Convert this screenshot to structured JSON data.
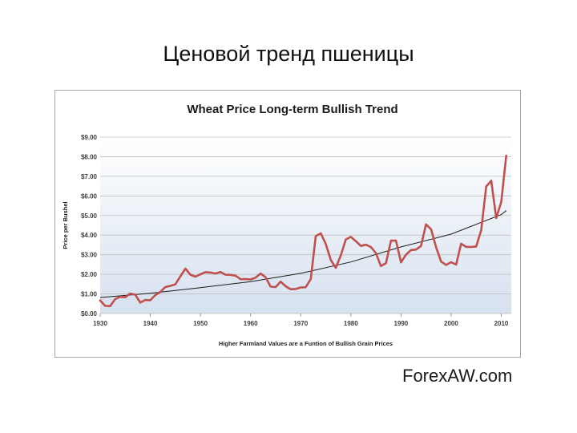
{
  "slide": {
    "title": "Ценовой тренд пшеницы",
    "watermark": "ForexAW.com"
  },
  "colors": {
    "price_line": "#c0504d",
    "trend_line": "#1a1a1a",
    "plot_bg_top": "#ffffff",
    "plot_bg_bottom": "#d6e1ef",
    "grid": "#bfbfbf"
  },
  "chart_data": {
    "type": "line",
    "title": "Wheat Price Long-term Bullish Trend",
    "xlabel": "Higher Farmland Values are a Funtion of Bullish Grain Prices",
    "ylabel": "Price per Bushel",
    "xlim": [
      1930,
      2012
    ],
    "ylim": [
      0,
      9
    ],
    "x_ticks": [
      1930,
      1940,
      1950,
      1960,
      1970,
      1980,
      1990,
      2000,
      2010
    ],
    "y_ticks": [
      "$0.00",
      "$1.00",
      "$2.00",
      "$3.00",
      "$4.00",
      "$5.00",
      "$6.00",
      "$7.00",
      "$8.00",
      "$9.00"
    ],
    "grid": true,
    "legend": "none",
    "series": [
      {
        "x": [
          1930,
          1931,
          1932,
          1933,
          1934,
          1935,
          1936,
          1937,
          1938,
          1939,
          1940,
          1941,
          1942,
          1943,
          1944,
          1945,
          1946,
          1947,
          1948,
          1949,
          1950,
          1951,
          1952,
          1953,
          1954,
          1955,
          1956,
          1957,
          1958,
          1959,
          1960,
          1961,
          1962,
          1963,
          1964,
          1965,
          1966,
          1967,
          1968,
          1969,
          1970,
          1971,
          1972,
          1973,
          1974,
          1975,
          1976,
          1977,
          1978,
          1979,
          1980,
          1981,
          1982,
          1983,
          1984,
          1985,
          1986,
          1987,
          1988,
          1989,
          1990,
          1991,
          1992,
          1993,
          1994,
          1995,
          1996,
          1997,
          1998,
          1999,
          2000,
          2001,
          2002,
          2003,
          2004,
          2005,
          2006,
          2007,
          2008,
          2009,
          2010,
          2011
        ],
        "values": [
          0.67,
          0.39,
          0.38,
          0.74,
          0.85,
          0.83,
          1.02,
          0.96,
          0.56,
          0.69,
          0.68,
          0.94,
          1.1,
          1.35,
          1.41,
          1.49,
          1.9,
          2.29,
          1.98,
          1.88,
          2.0,
          2.11,
          2.09,
          2.04,
          2.12,
          1.98,
          1.97,
          1.93,
          1.75,
          1.76,
          1.74,
          1.83,
          2.04,
          1.85,
          1.37,
          1.35,
          1.63,
          1.39,
          1.24,
          1.25,
          1.33,
          1.34,
          1.76,
          3.95,
          4.09,
          3.55,
          2.73,
          2.33,
          2.97,
          3.78,
          3.91,
          3.69,
          3.45,
          3.51,
          3.39,
          3.08,
          2.42,
          2.57,
          3.72,
          3.72,
          2.61,
          3.0,
          3.24,
          3.26,
          3.45,
          4.55,
          4.3,
          3.38,
          2.65,
          2.48,
          2.62,
          2.5,
          3.56,
          3.4,
          3.4,
          3.42,
          4.26,
          6.48,
          6.78,
          4.87,
          5.7,
          8.05
        ]
      },
      {
        "x": [
          1930,
          1940,
          1950,
          1960,
          1970,
          1980,
          1990,
          2000,
          2010,
          2011
        ],
        "values": [
          0.82,
          1.03,
          1.32,
          1.63,
          2.05,
          2.63,
          3.4,
          4.05,
          5.05,
          5.25
        ]
      }
    ]
  }
}
